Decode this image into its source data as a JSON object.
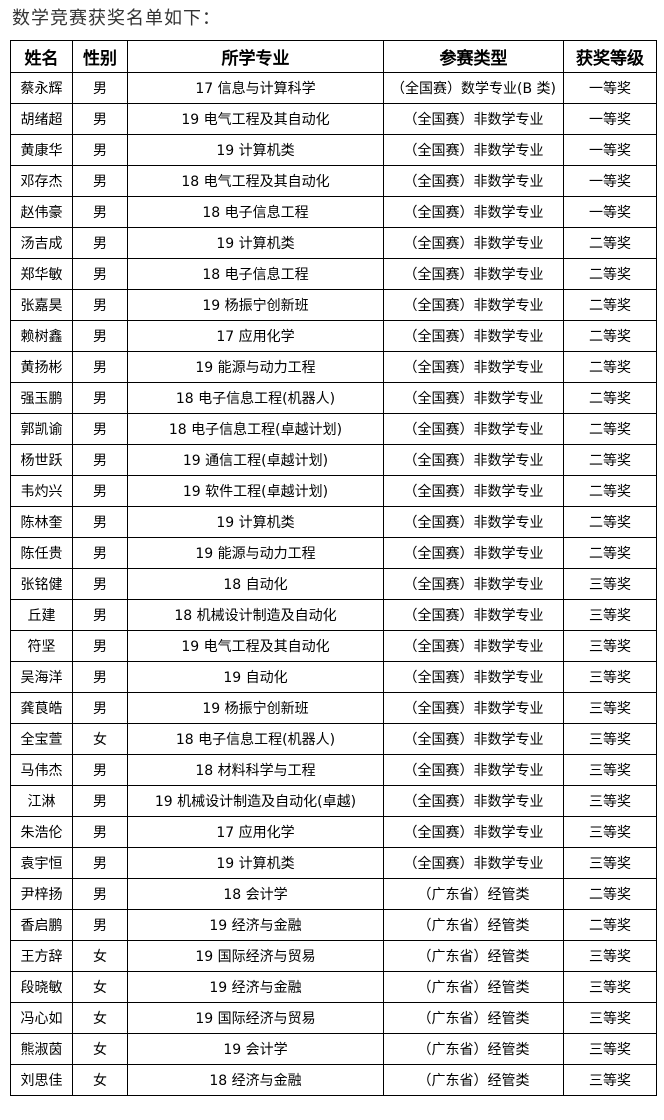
{
  "title": "数学竞赛获奖名单如下：",
  "headers": [
    "姓名",
    "性别",
    "所学专业",
    "参赛类型",
    "获奖等级"
  ],
  "rows": [
    [
      "蔡永辉",
      "男",
      "17 信息与计算科学",
      "（全国赛）数学专业(B 类)",
      "一等奖"
    ],
    [
      "胡绪超",
      "男",
      "19 电气工程及其自动化",
      "（全国赛）非数学专业",
      "一等奖"
    ],
    [
      "黄康华",
      "男",
      "19 计算机类",
      "（全国赛）非数学专业",
      "一等奖"
    ],
    [
      "邓存杰",
      "男",
      "18 电气工程及其自动化",
      "（全国赛）非数学专业",
      "一等奖"
    ],
    [
      "赵伟豪",
      "男",
      "18 电子信息工程",
      "（全国赛）非数学专业",
      "一等奖"
    ],
    [
      "汤吉成",
      "男",
      "19 计算机类",
      "（全国赛）非数学专业",
      "二等奖"
    ],
    [
      "郑华敏",
      "男",
      "18 电子信息工程",
      "（全国赛）非数学专业",
      "二等奖"
    ],
    [
      "张嘉昊",
      "男",
      "19 杨振宁创新班",
      "（全国赛）非数学专业",
      "二等奖"
    ],
    [
      "赖树鑫",
      "男",
      "17 应用化学",
      "（全国赛）非数学专业",
      "二等奖"
    ],
    [
      "黄扬彬",
      "男",
      "19 能源与动力工程",
      "（全国赛）非数学专业",
      "二等奖"
    ],
    [
      "强玉鹏",
      "男",
      "18 电子信息工程(机器人)",
      "（全国赛）非数学专业",
      "二等奖"
    ],
    [
      "郭凯谕",
      "男",
      "18 电子信息工程(卓越计划)",
      "（全国赛）非数学专业",
      "二等奖"
    ],
    [
      "杨世跃",
      "男",
      "19 通信工程(卓越计划)",
      "（全国赛）非数学专业",
      "二等奖"
    ],
    [
      "韦灼兴",
      "男",
      "19 软件工程(卓越计划)",
      "（全国赛）非数学专业",
      "二等奖"
    ],
    [
      "陈林奎",
      "男",
      "19 计算机类",
      "（全国赛）非数学专业",
      "二等奖"
    ],
    [
      "陈任贵",
      "男",
      "19 能源与动力工程",
      "（全国赛）非数学专业",
      "二等奖"
    ],
    [
      "张铭健",
      "男",
      "18 自动化",
      "（全国赛）非数学专业",
      "三等奖"
    ],
    [
      "丘建",
      "男",
      "18 机械设计制造及自动化",
      "（全国赛）非数学专业",
      "三等奖"
    ],
    [
      "符坚",
      "男",
      "19 电气工程及其自动化",
      "（全国赛）非数学专业",
      "三等奖"
    ],
    [
      "吴海洋",
      "男",
      "19 自动化",
      "（全国赛）非数学专业",
      "三等奖"
    ],
    [
      "龚茛皓",
      "男",
      "19 杨振宁创新班",
      "（全国赛）非数学专业",
      "三等奖"
    ],
    [
      "全宝萱",
      "女",
      "18 电子信息工程(机器人)",
      "（全国赛）非数学专业",
      "三等奖"
    ],
    [
      "马伟杰",
      "男",
      "18 材料科学与工程",
      "（全国赛）非数学专业",
      "三等奖"
    ],
    [
      "江淋",
      "男",
      "19 机械设计制造及自动化(卓越)",
      "（全国赛）非数学专业",
      "三等奖"
    ],
    [
      "朱浩伦",
      "男",
      "17 应用化学",
      "（全国赛）非数学专业",
      "三等奖"
    ],
    [
      "袁宇恒",
      "男",
      "19 计算机类",
      "（全国赛）非数学专业",
      "三等奖"
    ],
    [
      "尹梓扬",
      "男",
      "18 会计学",
      "（广东省）经管类",
      "二等奖"
    ],
    [
      "香启鹏",
      "男",
      "19 经济与金融",
      "（广东省）经管类",
      "二等奖"
    ],
    [
      "王方辞",
      "女",
      "19 国际经济与贸易",
      "（广东省）经管类",
      "三等奖"
    ],
    [
      "段晓敏",
      "女",
      "19 经济与金融",
      "（广东省）经管类",
      "三等奖"
    ],
    [
      "冯心如",
      "女",
      "19 国际经济与贸易",
      "（广东省）经管类",
      "三等奖"
    ],
    [
      "熊淑茵",
      "女",
      "19 会计学",
      "（广东省）经管类",
      "三等奖"
    ],
    [
      "刘思佳",
      "女",
      "18 经济与金融",
      "（广东省）经管类",
      "三等奖"
    ]
  ]
}
